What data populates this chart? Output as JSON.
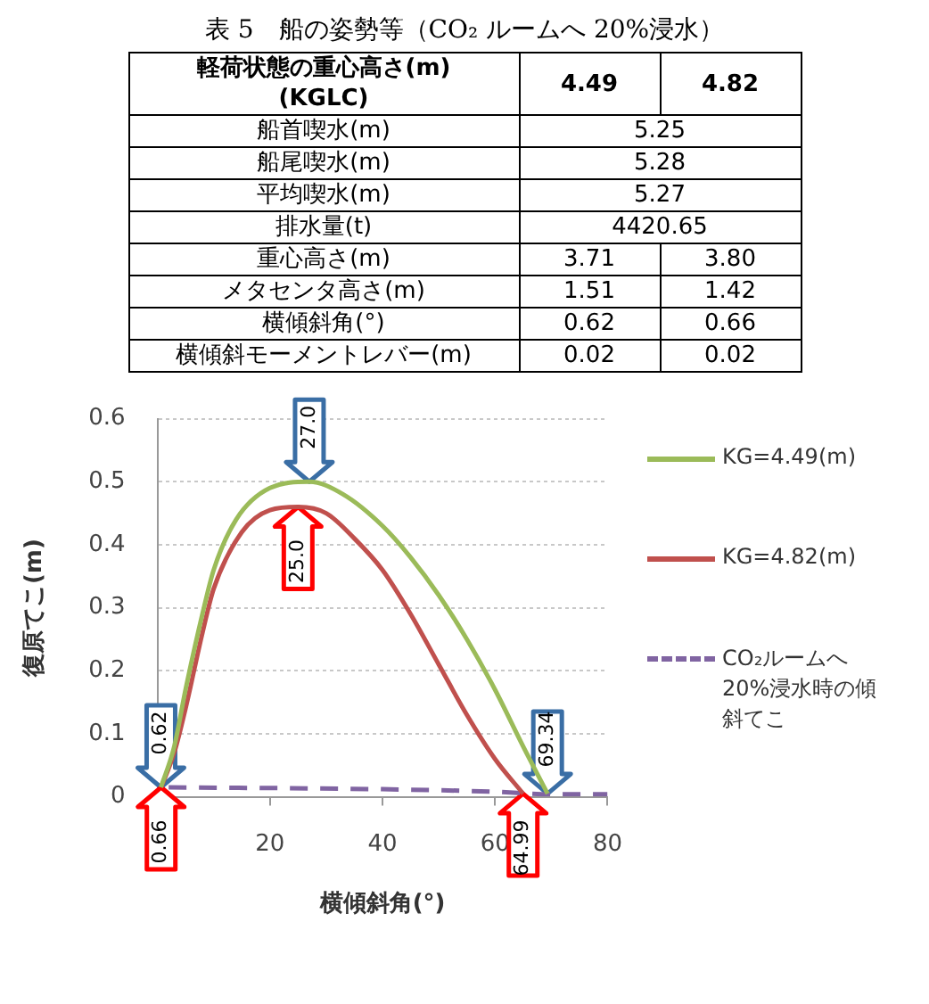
{
  "chart_data": [
    {
      "type": "other",
      "title": "表 5　船の姿勢等（CO₂ ルームへ 20%浸水）",
      "annotations": [
        "軽荷状態の重心高さ(m)\n(KGLC)",
        "4.49",
        "4.82",
        "船首喫水(m)",
        "5.25",
        "船尾喫水(m)",
        "5.28",
        "平均喫水(m)",
        "5.27",
        "排水量(t)",
        "4420.65",
        "重心高さ(m)",
        "3.71",
        "3.80",
        "メタセンタ高さ(m)",
        "1.51",
        "1.42",
        "横傾斜角(°)",
        "0.62",
        "0.66",
        "横傾斜モーメントレバー(m)",
        "0.02",
        "0.02"
      ]
    },
    {
      "type": "line",
      "xlabel": "横傾斜角(°)",
      "ylabel": "復原てこ(m)",
      "xlim": [
        0,
        80
      ],
      "xticks": [
        20,
        40,
        60,
        80
      ],
      "ylim": [
        0,
        0.6
      ],
      "yticks": [
        0,
        0.1,
        0.2,
        0.3,
        0.4,
        0.5,
        0.6
      ],
      "grid": "y",
      "legend": "right",
      "series": [
        {
          "name": "KG=4.49(m)",
          "color": "#9bbb59",
          "x": [
            0.62,
            3,
            5,
            8,
            10,
            14,
            20,
            27,
            33,
            40,
            45,
            50,
            55,
            60,
            65,
            69.34
          ],
          "values": [
            0.015,
            0.08,
            0.17,
            0.29,
            0.36,
            0.44,
            0.49,
            0.5,
            0.48,
            0.43,
            0.38,
            0.32,
            0.25,
            0.17,
            0.08,
            0.005
          ]
        },
        {
          "name": "KG=4.82(m)",
          "color": "#c0504d",
          "x": [
            0.66,
            3,
            5,
            8,
            10,
            15,
            20,
            25,
            30,
            35,
            40,
            45,
            50,
            55,
            60,
            64.99
          ],
          "values": [
            0.015,
            0.07,
            0.14,
            0.26,
            0.33,
            0.42,
            0.455,
            0.46,
            0.45,
            0.41,
            0.36,
            0.29,
            0.21,
            0.13,
            0.06,
            0.005
          ]
        },
        {
          "name": "CO₂ルームへ20%浸水時の傾斜てこ",
          "color": "#8064a2",
          "line_style": "dashed",
          "x": [
            2,
            40,
            60,
            70,
            80
          ],
          "values": [
            0.015,
            0.012,
            0.008,
            0.004,
            0.004
          ]
        }
      ],
      "annotations": [
        {
          "text": "0.62",
          "x": 0.62,
          "y": 0.015
        },
        {
          "text": "0.66",
          "x": 0.66,
          "y": 0.015
        },
        {
          "text": "27.0",
          "x": 27,
          "y": 0.5
        },
        {
          "text": "25.0",
          "x": 25,
          "y": 0.46
        },
        {
          "text": "69.34",
          "x": 69.34,
          "y": 0.005
        },
        {
          "text": "64.99",
          "x": 64.99,
          "y": 0.005
        }
      ]
    }
  ]
}
